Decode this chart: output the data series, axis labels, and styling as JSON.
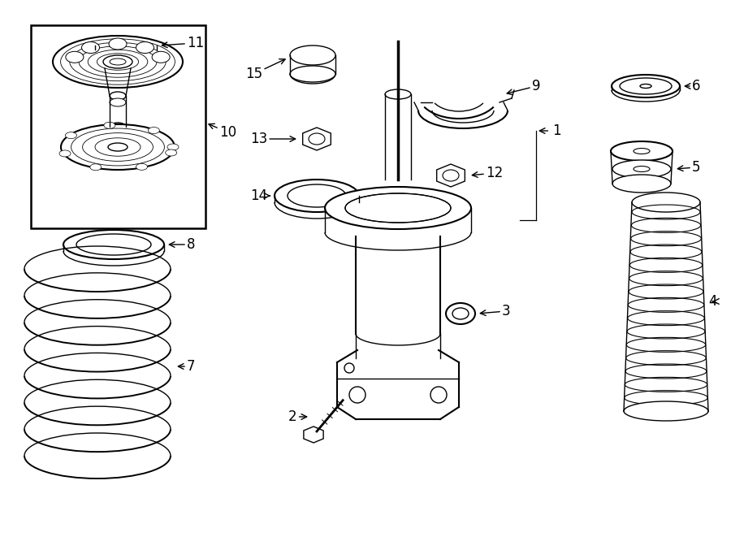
{
  "bg_color": "#ffffff",
  "line_color": "#000000",
  "fig_w": 9.0,
  "fig_h": 6.61,
  "dpi": 100,
  "xlim": [
    0,
    900
  ],
  "ylim": [
    0,
    661
  ]
}
